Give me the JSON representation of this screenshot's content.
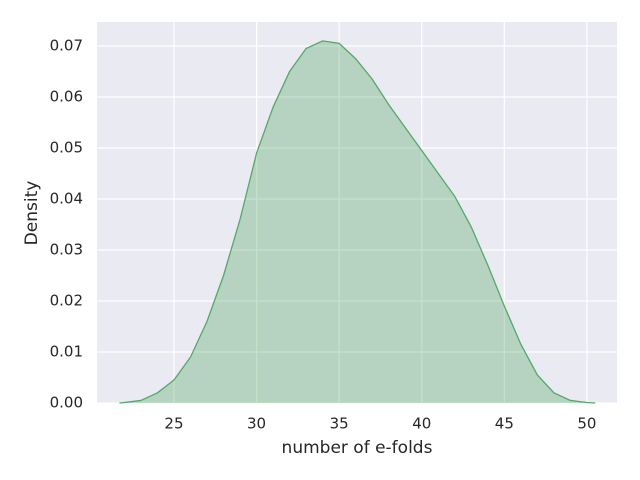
{
  "chart_data": {
    "type": "kde",
    "x_label": "number of e-folds",
    "y_label": "Density",
    "x": [
      21.7,
      22,
      23,
      24,
      25,
      26,
      27,
      28,
      29,
      30,
      31,
      32,
      33,
      34,
      35,
      36,
      37,
      38,
      39,
      40,
      41,
      42,
      43,
      44,
      45,
      46,
      47,
      48,
      49,
      50,
      50.5
    ],
    "values": [
      0,
      0.0001,
      0.0005,
      0.002,
      0.0045,
      0.009,
      0.016,
      0.025,
      0.036,
      0.049,
      0.058,
      0.065,
      0.0695,
      0.071,
      0.0705,
      0.0675,
      0.0635,
      0.0585,
      0.054,
      0.0495,
      0.045,
      0.0405,
      0.0345,
      0.027,
      0.019,
      0.0115,
      0.0055,
      0.002,
      0.0005,
      0.0001,
      0
    ],
    "color": "#55a868",
    "xlim": [
      20.34,
      51.82
    ],
    "ylim": [
      0,
      0.0747
    ],
    "xticks": [
      25,
      30,
      35,
      40,
      45,
      50
    ],
    "yticks": [
      {
        "value": 0,
        "label": "0.00"
      },
      0.01,
      0.02,
      0.03,
      0.04,
      0.05,
      0.06,
      0.07
    ],
    "grid": true
  }
}
